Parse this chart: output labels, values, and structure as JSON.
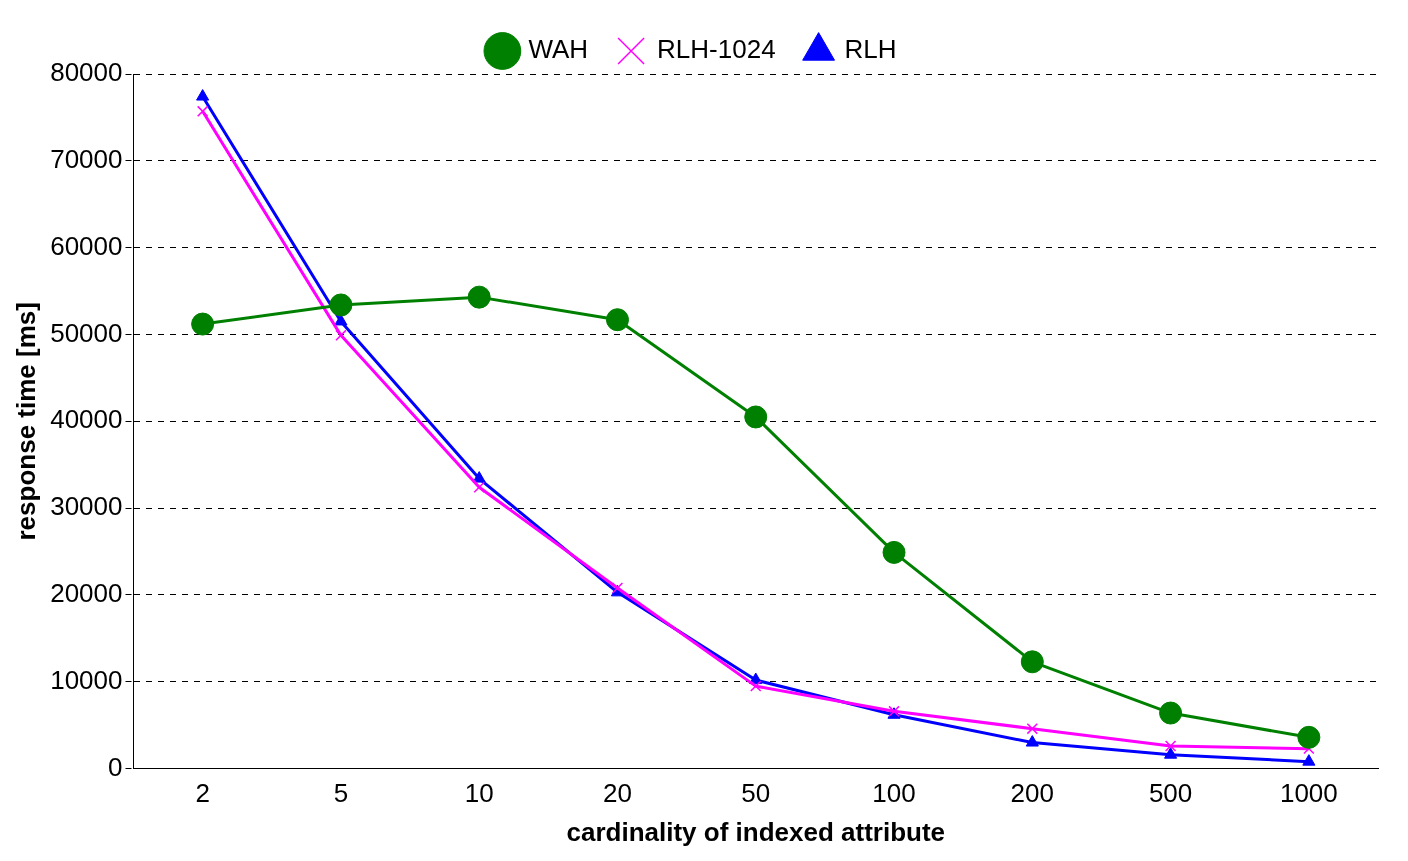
{
  "chart_data": {
    "type": "line",
    "xlabel": "cardinality of indexed attribute",
    "ylabel": "response time [ms]",
    "categories": [
      "2",
      "5",
      "10",
      "20",
      "50",
      "100",
      "200",
      "500",
      "1000"
    ],
    "series": [
      {
        "name": "RLH",
        "color": "#0000ff",
        "marker": "triangle",
        "values": [
          77400,
          51500,
          33400,
          20300,
          10200,
          6200,
          3000,
          1600,
          800
        ]
      },
      {
        "name": "RLH-1024",
        "color": "#ff00ff",
        "marker": "cross",
        "values": [
          75700,
          49900,
          32400,
          20800,
          9500,
          6600,
          4600,
          2600,
          2300
        ]
      },
      {
        "name": "WAH",
        "color": "#008000",
        "marker": "circle",
        "values": [
          51200,
          53400,
          54300,
          51700,
          40500,
          24900,
          12300,
          6400,
          3600
        ]
      }
    ],
    "ylim": [
      0,
      80000
    ],
    "yticks": [
      0,
      10000,
      20000,
      30000,
      40000,
      50000,
      60000,
      70000,
      80000
    ],
    "grid": "y",
    "legend": "top",
    "line_style": "solid"
  }
}
